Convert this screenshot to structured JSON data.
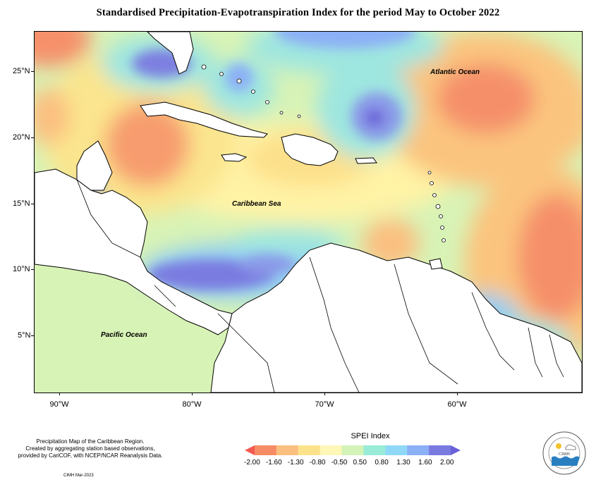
{
  "title": "Standardised Precipitation-Evapotranspiration Index for the period May to October 2022",
  "map": {
    "lat_labels": [
      "25°N",
      "20°N",
      "15°N",
      "10°N",
      "5°N"
    ],
    "lon_labels": [
      "90°W",
      "80°W",
      "70°W",
      "60°W"
    ],
    "place_labels": {
      "atlantic": "Atlantic Ocean",
      "caribbean": "Caribbean Sea",
      "pacific": "Pacific Ocean"
    }
  },
  "legend": {
    "title": "SPEI Index",
    "values": [
      "-2.00",
      "-1.60",
      "-1.30",
      "-0.80",
      "-0.50",
      "0.50",
      "0.80",
      "1.30",
      "1.60",
      "2.00"
    ],
    "colors": [
      "#f25a50",
      "#f68c66",
      "#fbbf80",
      "#fde28c",
      "#fff7b8",
      "#d4f3b8",
      "#98ecd8",
      "#90d8f8",
      "#8cb0f6",
      "#7a7be0",
      "#6a60d8"
    ]
  },
  "credit": {
    "line1": "Precipitation Map of the Caribbean Region.",
    "line2": "Created by aggregating station based observations,",
    "line3": "provided by CariCOF, with NCEP/NCAR Reanalysis Data.",
    "date": "CIMH Mar-2023"
  },
  "logo": {
    "name": "CIMH",
    "icon": "cimh-seal-icon"
  }
}
